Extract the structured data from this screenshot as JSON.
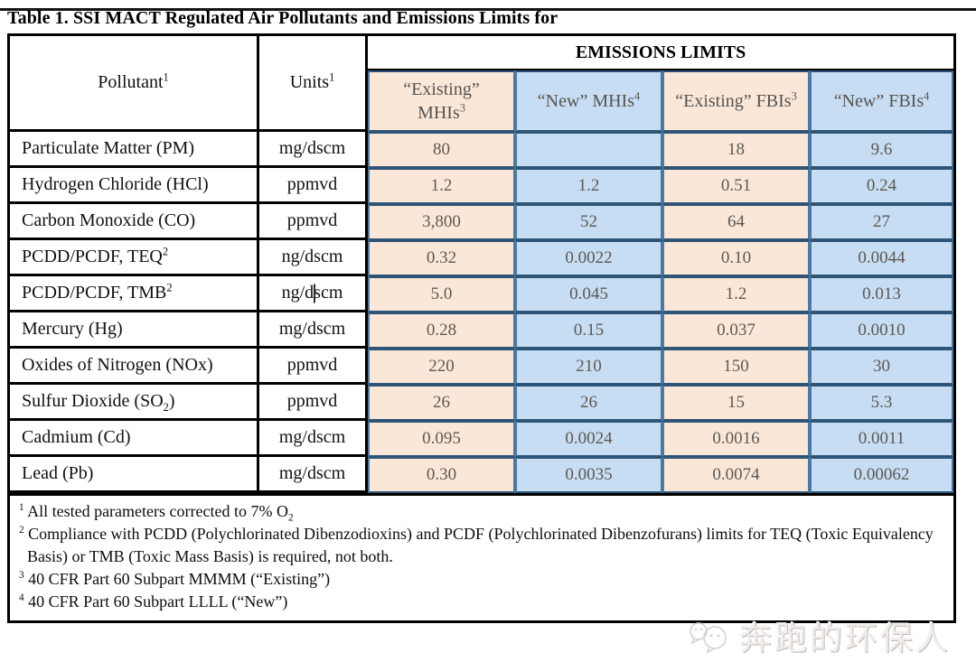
{
  "page": {
    "title": "Table 1. SSI MACT Regulated Air Pollutants and Emissions Limits for"
  },
  "table": {
    "header": {
      "pollutant": {
        "text": "Pollutant",
        "sup": "1"
      },
      "units": {
        "text": "Units",
        "sup": "1"
      },
      "emissions_limits": "EMISSIONS LIMITS",
      "subcolumns": [
        {
          "key": "existing-mhis",
          "text": "“Existing”\nMHIs",
          "sup": "3",
          "tone": "peach"
        },
        {
          "key": "new-mhis",
          "text": "“New” MHIs",
          "sup": "4",
          "tone": "blue"
        },
        {
          "key": "existing-fbis",
          "text": "“Existing” FBIs",
          "sup": "3",
          "tone": "peach"
        },
        {
          "key": "new-fbis",
          "text": "“New” FBIs",
          "sup": "4",
          "tone": "blue"
        }
      ]
    },
    "rows": [
      {
        "pollutant": {
          "text": "Particulate Matter (PM)"
        },
        "units": "mg/dscm",
        "values": [
          "80",
          "",
          "18",
          "9.6"
        ]
      },
      {
        "pollutant": {
          "text": "Hydrogen Chloride (HCl)"
        },
        "units": "ppmvd",
        "values": [
          "1.2",
          "1.2",
          "0.51",
          "0.24"
        ]
      },
      {
        "pollutant": {
          "text": "Carbon Monoxide (CO)"
        },
        "units": "ppmvd",
        "values": [
          "3,800",
          "52",
          "64",
          "27"
        ]
      },
      {
        "pollutant": {
          "text": "PCDD/PCDF, TEQ",
          "sup": "2"
        },
        "units": "ng/dscm",
        "values": [
          "0.32",
          "0.0022",
          "0.10",
          "0.0044"
        ]
      },
      {
        "pollutant": {
          "text": "PCDD/PCDF, TMB",
          "sup": "2"
        },
        "units": "ng/dscm",
        "caret": true,
        "values": [
          "5.0",
          "0.045",
          "1.2",
          "0.013"
        ]
      },
      {
        "pollutant": {
          "text": "Mercury (Hg)"
        },
        "units": "mg/dscm",
        "values": [
          "0.28",
          "0.15",
          "0.037",
          "0.0010"
        ]
      },
      {
        "pollutant": {
          "text": "Oxides of Nitrogen (NOx)"
        },
        "units": "ppmvd",
        "values": [
          "220",
          "210",
          "150",
          "30"
        ]
      },
      {
        "pollutant": {
          "text": "Sulfur Dioxide (SO",
          "sub": "2",
          "after": ")"
        },
        "units": "ppmvd",
        "values": [
          "26",
          "26",
          "15",
          "5.3"
        ]
      },
      {
        "pollutant": {
          "text": "Cadmium (Cd)"
        },
        "units": "mg/dscm",
        "values": [
          "0.095",
          "0.0024",
          "0.0016",
          "0.0011"
        ]
      },
      {
        "pollutant": {
          "text": "Lead (Pb)"
        },
        "units": "mg/dscm",
        "values": [
          "0.30",
          "0.0035",
          "0.0074",
          "0.00062"
        ]
      }
    ],
    "footnotes": [
      {
        "sup": "1",
        "text": "All tested parameters corrected to 7% O",
        "sub": "2"
      },
      {
        "sup": "2",
        "text": "Compliance with PCDD (Polychlorinated Dibenzodioxins) and PCDF (Polychlorinated Dibenzofurans) limits for TEQ (Toxic Equivalency Basis) or TMB (Toxic Mass Basis) is required, not both."
      },
      {
        "sup": "3",
        "text": "40 CFR Part 60 Subpart MMMM (“Existing”)"
      },
      {
        "sup": "4",
        "text": "40 CFR Part 60 Subpart LLLL (“New”)"
      }
    ]
  },
  "watermark": {
    "text": "奔跑的环保人"
  },
  "colors": {
    "peach_fill": "#fbe7d8",
    "blue_fill": "#c7ddf3",
    "limit_border": "#4d79a1",
    "grid": "#000000",
    "limit_text": "#5d5853"
  }
}
